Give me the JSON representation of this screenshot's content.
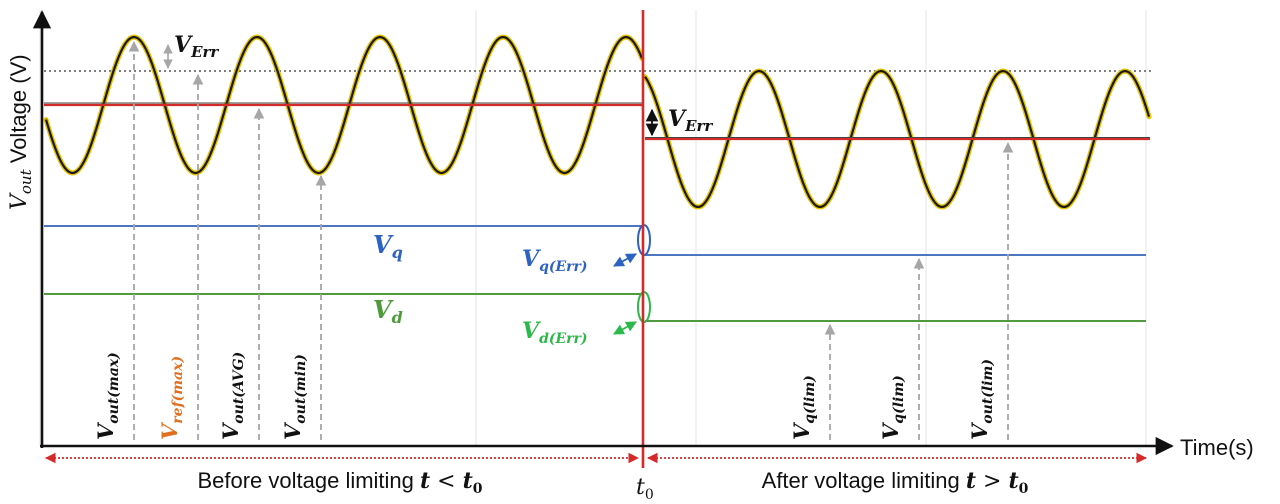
{
  "y_axis": {
    "label_main": "V",
    "label_sub": "out",
    "label_rest": " Voltage (V)"
  },
  "x_axis": {
    "label": "Time(s)"
  },
  "t0_label": {
    "main": "t",
    "sub": "0"
  },
  "regions": {
    "before": {
      "text": "Before voltage limiting ",
      "math_main": "t",
      "math_op": " < ",
      "math_t": "t",
      "math_sub": "0"
    },
    "after": {
      "text": "After voltage limiting ",
      "math_main": "t",
      "math_op": " > ",
      "math_t": "t",
      "math_sub": "0"
    }
  },
  "labels": {
    "v_err_top": {
      "main": "V",
      "sub": "Err"
    },
    "v_err_right": {
      "main": "V",
      "sub": "Err"
    },
    "vq": {
      "main": "V",
      "sub": "q"
    },
    "vd": {
      "main": "V",
      "sub": "d"
    },
    "vq_err": {
      "main": "V",
      "sub": "q(Err)"
    },
    "vd_err": {
      "main": "V",
      "sub": "d(Err)"
    },
    "vout_max": {
      "main": "V",
      "sub": "out(max)"
    },
    "vref_max": {
      "main": "V",
      "sub": "ref(max)"
    },
    "vout_avg": {
      "main": "V",
      "sub": "out(AVG)"
    },
    "vout_min": {
      "main": "V",
      "sub": "out(min)"
    },
    "vq_lim_1": {
      "main": "V",
      "sub": "q(lim)"
    },
    "vq_lim_2": {
      "main": "V",
      "sub": "q(lim)"
    },
    "vout_lim": {
      "main": "V",
      "sub": "out(lim)"
    }
  },
  "colors": {
    "wave": "#1a1a1a",
    "wave_glow": "#e6c200",
    "red": "#d42a2a",
    "blue": "#4a76c2",
    "green": "#4f9a3c",
    "label_blue": "#2c63c2",
    "label_green": "#2db84a",
    "label_orange": "#e07020",
    "dashed": "#a6a6a6"
  }
}
